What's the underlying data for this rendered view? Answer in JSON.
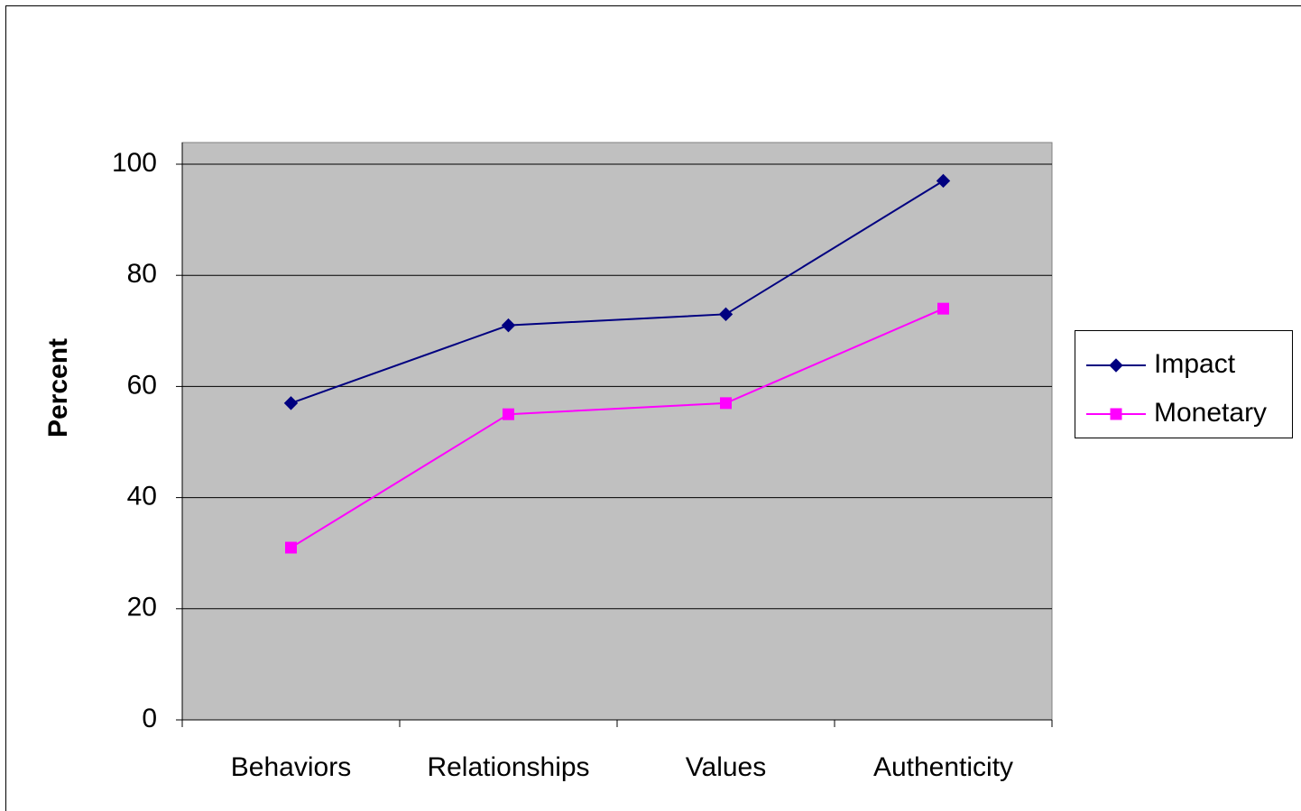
{
  "chart_data": {
    "type": "line",
    "y_label": "Percent",
    "categories": [
      "Behaviors",
      "Relationships",
      "Values",
      "Authenticity"
    ],
    "series": [
      {
        "name": "Impact",
        "color": "#000080",
        "marker": "diamond",
        "values": [
          57,
          71,
          73,
          97
        ]
      },
      {
        "name": "Monetary",
        "color": "#ff00ff",
        "marker": "square",
        "values": [
          31,
          55,
          57,
          74
        ]
      }
    ],
    "ylim": [
      0,
      100
    ],
    "yticks": [
      0,
      20,
      40,
      60,
      80,
      100
    ],
    "grid": true,
    "legend": "right"
  }
}
